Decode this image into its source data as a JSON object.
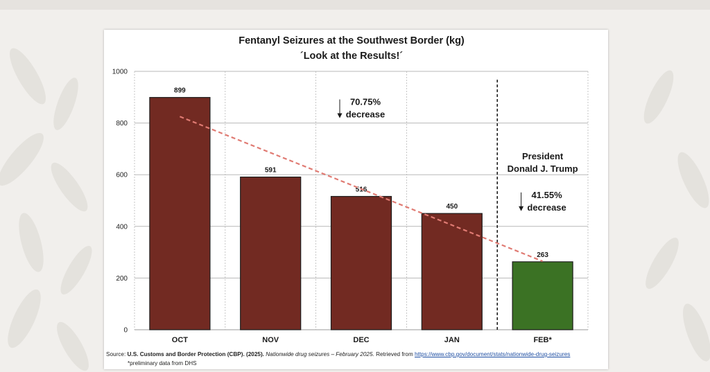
{
  "chart_data": {
    "type": "bar",
    "title": "Fentanyl Seizures at the Southwest Border (kg)",
    "subtitle": "´Look at the Results!´",
    "categories": [
      "OCT",
      "NOV",
      "DEC",
      "JAN",
      "FEB*"
    ],
    "values": [
      899,
      591,
      516,
      450,
      263
    ],
    "value_labels": [
      "899",
      "591",
      "516",
      "450",
      "263"
    ],
    "ylim": [
      0,
      1000
    ],
    "yticks": [
      0,
      200,
      400,
      600,
      800,
      1000
    ],
    "grid": true,
    "bar_colors": [
      "#722a22",
      "#722a22",
      "#722a22",
      "#722a22",
      "#3b7224"
    ],
    "trend_line": {
      "from_category": "OCT",
      "to_category": "FEB*",
      "y_from": 825,
      "y_to": 265,
      "color": "#e07b73"
    },
    "divider_between": [
      "JAN",
      "FEB*"
    ],
    "annotations": [
      {
        "lines": [
          "70.75%",
          "decrease"
        ],
        "category": "DEC",
        "y": 870
      },
      {
        "lines": [
          "President",
          "Donald J. Trump"
        ],
        "category": "FEB*",
        "y": 660
      },
      {
        "lines": [
          "41.55%",
          "decrease"
        ],
        "category": "FEB*",
        "y": 510
      }
    ]
  },
  "footer": {
    "source_label": "Source: ",
    "source_org": "U.S. Customs and Border Protection (CBP). (2025).",
    "source_doc": "Nationwide drug seizures – February 2025.",
    "retrieved": " Retrieved from ",
    "source_url": "https://www.cbp.gov/document/stats/nationwide-drug-seizures",
    "note": "*preliminary data from DHS"
  },
  "colors": {
    "page_bg": "#f1efec",
    "grid": "#b8b8b8",
    "text": "#1a1a1a"
  }
}
